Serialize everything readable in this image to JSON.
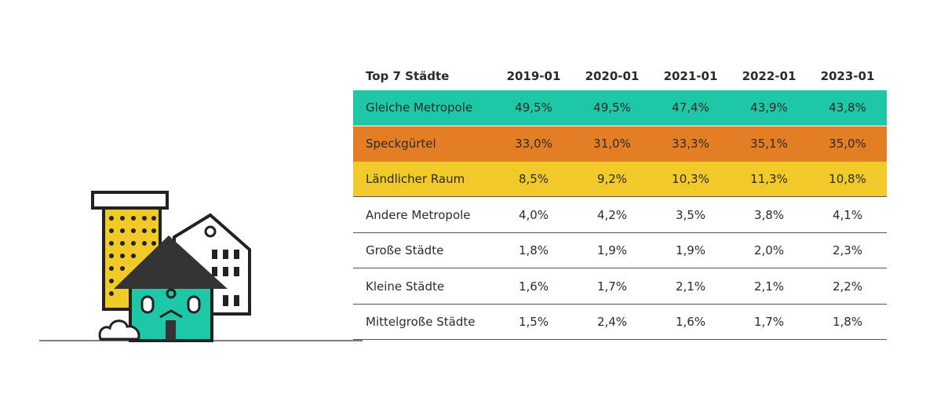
{
  "table": {
    "header": [
      "Top 7 Städte",
      "2019-01",
      "2020-01",
      "2021-01",
      "2022-01",
      "2023-01"
    ],
    "rows": [
      [
        "Gleiche Metropole",
        "49,5%",
        "49,5%",
        "47,4%",
        "43,9%",
        "43,8%"
      ],
      [
        "Speckgürtel",
        "33,0%",
        "31,0%",
        "33,3%",
        "35,1%",
        "35,0%"
      ],
      [
        "Ländlicher Raum",
        "8,5%",
        "9,2%",
        "10,3%",
        "11,3%",
        "10,8%"
      ],
      [
        "Andere Metropole",
        "4,0%",
        "4,2%",
        "3,5%",
        "3,8%",
        "4,1%"
      ],
      [
        "Große Städte",
        "1,8%",
        "1,9%",
        "1,9%",
        "2,0%",
        "2,3%"
      ],
      [
        "Kleine Städte",
        "1,6%",
        "1,7%",
        "2,1%",
        "2,1%",
        "2,2%"
      ],
      [
        "Mittelgroße Städte",
        "1,5%",
        "2,4%",
        "1,6%",
        "1,7%",
        "1,8%"
      ]
    ]
  }
}
